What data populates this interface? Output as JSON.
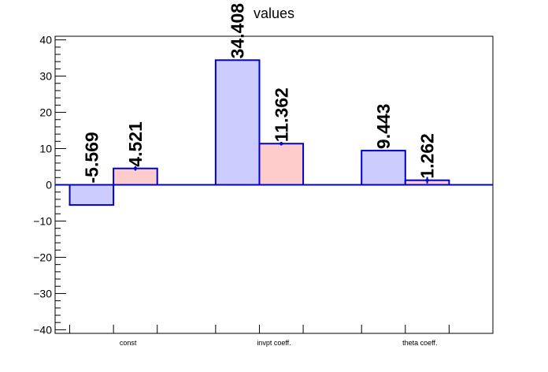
{
  "chart_data": {
    "type": "bar",
    "title": "values",
    "categories": [
      "const",
      "invpt coeff.",
      "theta coeff."
    ],
    "series": [
      {
        "values": [
          -5.569,
          34.408,
          9.443
        ],
        "labels": [
          "-5.569",
          "34.408",
          "9.443"
        ],
        "color": "#ccccff"
      },
      {
        "values": [
          4.521,
          11.362,
          1.262
        ],
        "labels": [
          "4.521",
          "11.362",
          "1.262"
        ],
        "errors": [
          0.6,
          0.5,
          0.9
        ],
        "color": "#ffcccc"
      }
    ],
    "edge_color": "#0000cc",
    "ylim": [
      -41,
      41
    ],
    "yticks": [
      -40,
      -30,
      -20,
      -10,
      0,
      10,
      20,
      30,
      40
    ],
    "ytick_labels": [
      "−40",
      "−30",
      "−20",
      "−10",
      "0",
      "10",
      "20",
      "30",
      "40"
    ],
    "grid": false,
    "xlabel": "",
    "ylabel": ""
  }
}
